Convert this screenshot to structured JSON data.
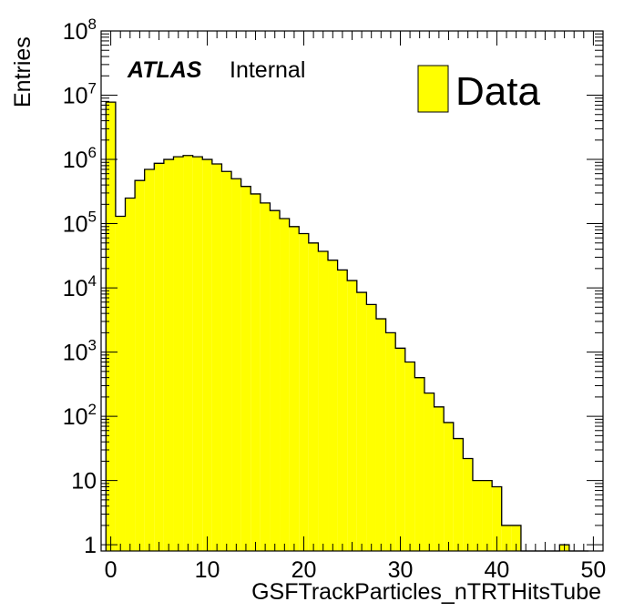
{
  "chart_data": {
    "type": "bar",
    "histogram": true,
    "xlabel": "GSFTrackParticles_nTRTHitsTube",
    "ylabel": "Entries",
    "xlim": [
      -1,
      51
    ],
    "ylim": [
      0.8,
      100000000
    ],
    "y_scale": "log",
    "bin_width": 1,
    "x_ticks": [
      0,
      10,
      20,
      30,
      40,
      50
    ],
    "y_ticks": [
      {
        "value": 1,
        "label": "1"
      },
      {
        "value": 10,
        "label": "10"
      },
      {
        "value": 100,
        "base": "10",
        "exp": "2"
      },
      {
        "value": 1000,
        "base": "10",
        "exp": "3"
      },
      {
        "value": 10000,
        "base": "10",
        "exp": "4"
      },
      {
        "value": 100000,
        "base": "10",
        "exp": "5"
      },
      {
        "value": 1000000,
        "base": "10",
        "exp": "6"
      },
      {
        "value": 10000000,
        "base": "10",
        "exp": "7"
      },
      {
        "value": 100000000,
        "base": "10",
        "exp": "8"
      }
    ],
    "grid": false,
    "legend_position": "top-right",
    "fill_color": "#ffff00",
    "line_color": "#000000",
    "series": [
      {
        "name": "Data",
        "x": [
          0,
          1,
          2,
          3,
          4,
          5,
          6,
          7,
          8,
          9,
          10,
          11,
          12,
          13,
          14,
          15,
          16,
          17,
          18,
          19,
          20,
          21,
          22,
          23,
          24,
          25,
          26,
          27,
          28,
          29,
          30,
          31,
          32,
          33,
          34,
          35,
          36,
          37,
          38,
          39,
          40,
          41,
          42,
          43,
          44,
          45,
          46,
          47,
          48,
          49
        ],
        "values": [
          7800000,
          130000,
          250000,
          470000,
          700000,
          870000,
          1000000,
          1100000,
          1150000,
          1100000,
          1000000,
          850000,
          650000,
          500000,
          380000,
          290000,
          210000,
          160000,
          120000,
          90000,
          70000,
          50000,
          37000,
          27000,
          19000,
          13000,
          8500,
          5500,
          3300,
          2000,
          1150,
          700,
          400,
          230,
          140,
          80,
          45,
          22,
          10,
          10,
          8,
          2,
          2,
          0,
          0,
          0,
          0,
          1,
          0,
          0
        ]
      }
    ]
  },
  "labels": {
    "atlas": "ATLAS",
    "internal": "Internal"
  }
}
